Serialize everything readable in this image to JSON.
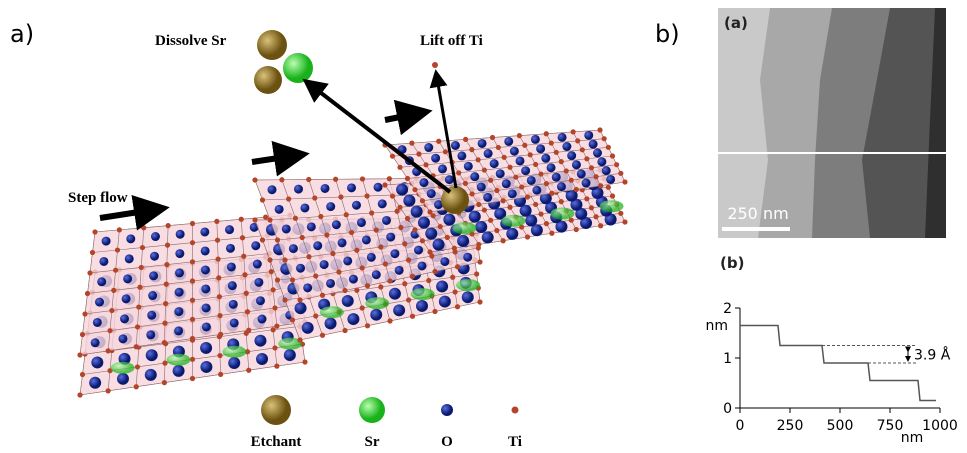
{
  "figure": {
    "panel_a": "a)",
    "panel_b": "b)",
    "dissolve": "Dissolve Sr",
    "lift_off": "Lift off Ti",
    "step_flow": "Step flow",
    "legend": [
      "Etchant",
      "Sr",
      "O",
      "Ti"
    ],
    "afm_label": "(a)",
    "scale_bar": "250 nm",
    "profile_label": "(b)"
  },
  "chart_data": {
    "type": "line",
    "x": [
      0,
      190,
      200,
      410,
      420,
      640,
      650,
      890,
      900,
      980
    ],
    "series": [
      {
        "color": "#555555",
        "values": [
          1.65,
          1.65,
          1.25,
          1.25,
          0.9,
          0.9,
          0.55,
          0.55,
          0.15,
          0.15
        ]
      }
    ],
    "xlim": [
      0,
      1000
    ],
    "ylim": [
      0,
      2
    ],
    "xticks": [
      0,
      250,
      500,
      750,
      1000
    ],
    "yticks": [
      0,
      1,
      2
    ],
    "xlabel": "nm",
    "ylabel": "nm",
    "annotation": "3.9 Å"
  }
}
